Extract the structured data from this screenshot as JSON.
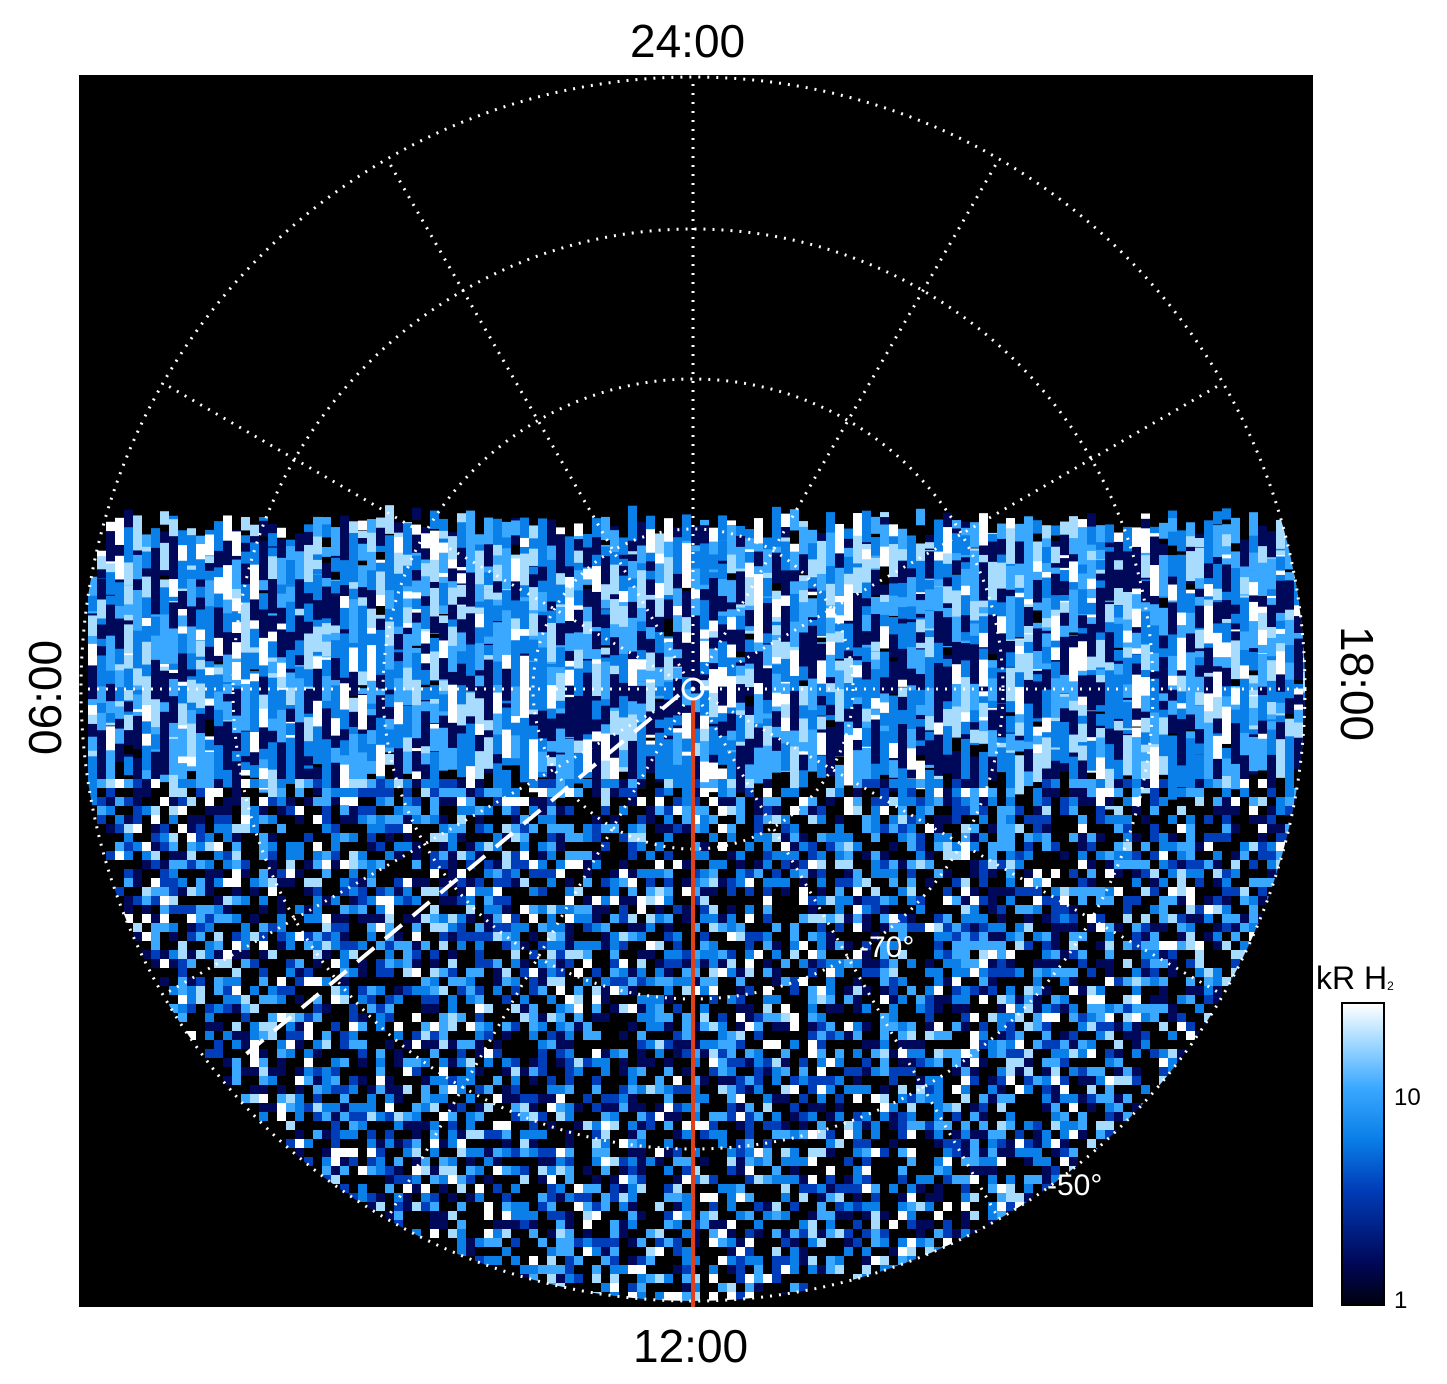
{
  "local_time_labels": {
    "top": "24:00",
    "bottom": "12:00",
    "left": "06:00",
    "right": "18:00"
  },
  "latitude_labels": {
    "inner": "-70°",
    "outer": "-50°"
  },
  "colorbar": {
    "title": "kR H",
    "title_subscript": "2",
    "ticks": [
      "10",
      "1"
    ],
    "colors": [
      "#000010",
      "#00085a",
      "#003db8",
      "#0a7fe8",
      "#3aa8ff",
      "#a8dcff",
      "#ffffff"
    ]
  },
  "plot": {
    "background": "#000000",
    "grid_color": "#ffffff",
    "meridian_color": "#e0401a"
  }
}
